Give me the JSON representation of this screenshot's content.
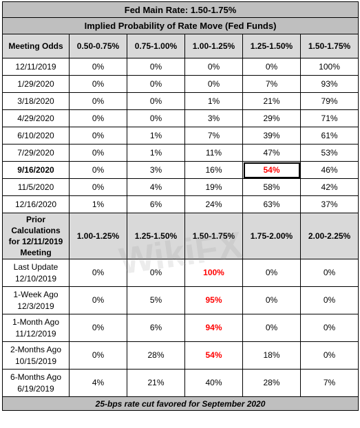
{
  "title": "Fed Main Rate: 1.50-1.75%",
  "subtitle": "Implied Probability of Rate Move (Fed Funds)",
  "odds_section": {
    "header_label": "Meeting Odds",
    "columns": [
      "0.50-0.75%",
      "0.75-1.00%",
      "1.00-1.25%",
      "1.25-1.50%",
      "1.50-1.75%"
    ],
    "rows": [
      {
        "date": "12/11/2019",
        "values": [
          "0%",
          "0%",
          "0%",
          "0%",
          "100%"
        ]
      },
      {
        "date": "1/29/2020",
        "values": [
          "0%",
          "0%",
          "0%",
          "7%",
          "93%"
        ]
      },
      {
        "date": "3/18/2020",
        "values": [
          "0%",
          "0%",
          "1%",
          "21%",
          "79%"
        ]
      },
      {
        "date": "4/29/2020",
        "values": [
          "0%",
          "0%",
          "3%",
          "29%",
          "71%"
        ]
      },
      {
        "date": "6/10/2020",
        "values": [
          "0%",
          "1%",
          "7%",
          "39%",
          "61%"
        ]
      },
      {
        "date": "7/29/2020",
        "values": [
          "0%",
          "1%",
          "11%",
          "47%",
          "53%"
        ]
      },
      {
        "date": "9/16/2020",
        "values": [
          "0%",
          "3%",
          "16%",
          "54%",
          "46%"
        ]
      },
      {
        "date": "11/5/2020",
        "values": [
          "0%",
          "4%",
          "19%",
          "58%",
          "42%"
        ]
      },
      {
        "date": "12/16/2020",
        "values": [
          "1%",
          "6%",
          "24%",
          "63%",
          "37%"
        ]
      }
    ]
  },
  "prior_section": {
    "header_label": [
      "Prior",
      "Calculations",
      "for 12/11/2019",
      "Meeting"
    ],
    "columns": [
      "1.00-1.25%",
      "1.25-1.50%",
      "1.50-1.75%",
      "1.75-2.00%",
      "2.00-2.25%"
    ],
    "rows": [
      {
        "label": "Last Update",
        "date": "12/10/2019",
        "values": [
          "0%",
          "0%",
          "100%",
          "0%",
          "0%"
        ]
      },
      {
        "label": "1-Week Ago",
        "date": "12/3/2019",
        "values": [
          "0%",
          "5%",
          "95%",
          "0%",
          "0%"
        ]
      },
      {
        "label": "1-Month Ago",
        "date": "11/12/2019",
        "values": [
          "0%",
          "6%",
          "94%",
          "0%",
          "0%"
        ]
      },
      {
        "label": "2-Months Ago",
        "date": "10/15/2019",
        "values": [
          "0%",
          "28%",
          "54%",
          "18%",
          "0%"
        ]
      },
      {
        "label": "6-Months Ago",
        "date": "6/19/2019",
        "values": [
          "4%",
          "21%",
          "40%",
          "28%",
          "7%"
        ]
      }
    ]
  },
  "footer": "25-bps rate cut favored for September 2020",
  "watermark": "WikiFX",
  "colors": {
    "header_bg": "#bfbfbf",
    "subheader_bg": "#d9d9d9",
    "highlight": "#ff0000"
  }
}
